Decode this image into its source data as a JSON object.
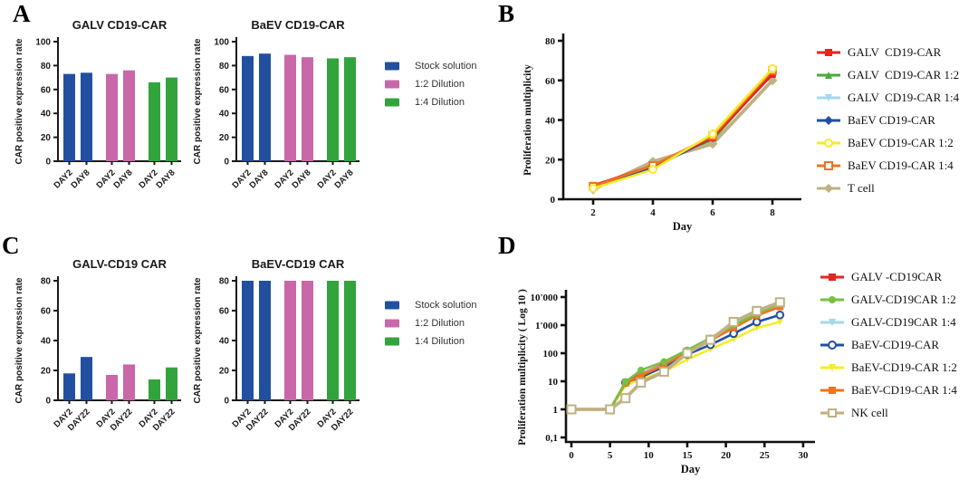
{
  "panel_letters": {
    "a": "A",
    "b": "B",
    "c": "C",
    "d": "D"
  },
  "colors": {
    "stock_blue": "#2150a0",
    "dilution_pink": "#c868a8",
    "dilution_green": "#33a33c",
    "red": "#e62420",
    "green": "#4ba93e",
    "light_green": "#76c043",
    "cyan": "#a3d9ec",
    "blue": "#2150a0",
    "yellow": "#f6eb2a",
    "orange": "#f0731d",
    "tan": "#bfb183"
  },
  "chart_data": [
    {
      "id": "a_left",
      "type": "bar",
      "title": "GALV CD19-CAR",
      "ylabel": "CAR positive expression rate",
      "ylim": [
        0,
        100
      ],
      "yticks": [
        0,
        20,
        40,
        60,
        80,
        100
      ],
      "categories": [
        "DAY2",
        "DAY8"
      ],
      "series": [
        {
          "name": "Stock solution",
          "color": "#2150a0",
          "values": [
            73,
            74
          ]
        },
        {
          "name": "1:2 Dilution",
          "color": "#c868a8",
          "values": [
            73,
            76
          ]
        },
        {
          "name": "1:4 Dilution",
          "color": "#33a33c",
          "values": [
            66,
            70
          ]
        }
      ]
    },
    {
      "id": "a_right",
      "type": "bar",
      "title": "BaEV CD19-CAR",
      "ylabel": "CAR positive expression rate",
      "ylim": [
        0,
        100
      ],
      "yticks": [
        0,
        20,
        40,
        60,
        80,
        100
      ],
      "categories": [
        "DAY2",
        "DAY8"
      ],
      "series": [
        {
          "name": "Stock solution",
          "color": "#2150a0",
          "values": [
            88,
            90
          ]
        },
        {
          "name": "1:2 Dilution",
          "color": "#c868a8",
          "values": [
            89,
            87
          ]
        },
        {
          "name": "1:4 Dilution",
          "color": "#33a33c",
          "values": [
            86,
            87
          ]
        }
      ]
    },
    {
      "id": "b",
      "type": "line",
      "xlabel": "Day",
      "ylabel": "Proliferation multiplicity",
      "ylim": [
        0,
        80
      ],
      "yticks": [
        0,
        20,
        40,
        60,
        80
      ],
      "x": [
        2,
        4,
        6,
        8
      ],
      "xticks": [
        2,
        4,
        6,
        8
      ],
      "series": [
        {
          "name": "GALV  CD19-CAR",
          "color": "#e62420",
          "marker": "square",
          "values": [
            7,
            17,
            31,
            63
          ]
        },
        {
          "name": "GALV  CD19-CAR 1:2",
          "color": "#4ba93e",
          "marker": "triangle",
          "values": [
            6,
            18,
            30,
            64
          ]
        },
        {
          "name": "GALV  CD19-CAR 1:4",
          "color": "#a3d9ec",
          "marker": "triangle-down",
          "values": [
            6,
            17,
            30.5,
            64
          ]
        },
        {
          "name": "BaEV CD19-CAR",
          "color": "#2150a0",
          "marker": "diamond",
          "values": [
            6,
            16,
            31,
            65
          ]
        },
        {
          "name": "BaEV CD19-CAR 1:2",
          "color": "#f6eb2a",
          "marker": "circle",
          "open": true,
          "values": [
            5.5,
            15,
            33,
            66
          ]
        },
        {
          "name": "BaEV CD19-CAR 1:4",
          "color": "#f0731d",
          "marker": "square",
          "open": true,
          "values": [
            6.5,
            17,
            32,
            65
          ]
        },
        {
          "name": "T cell",
          "color": "#bfb183",
          "marker": "diamond",
          "wide": true,
          "values": [
            5,
            19,
            28,
            60
          ]
        }
      ],
      "draw_order": [
        2,
        1,
        6,
        3,
        0,
        5,
        4
      ]
    },
    {
      "id": "c_left",
      "type": "bar",
      "title": "GALV-CD19 CAR",
      "ylabel": "CAR positive expression rate",
      "ylim": [
        0,
        80
      ],
      "yticks": [
        0,
        20,
        40,
        60,
        80
      ],
      "categories": [
        "DAY2",
        "DAY22"
      ],
      "series": [
        {
          "name": "Stock solution",
          "color": "#2150a0",
          "values": [
            18,
            29
          ]
        },
        {
          "name": "1:2 Dilution",
          "color": "#c868a8",
          "values": [
            17,
            24
          ]
        },
        {
          "name": "1:4 Dilution",
          "color": "#33a33c",
          "values": [
            14,
            22
          ]
        }
      ]
    },
    {
      "id": "c_right",
      "type": "bar",
      "title": "BaEV-CD19 CAR",
      "ylabel": "CAR positive expression rate",
      "ylim": [
        0,
        80
      ],
      "yticks": [
        0,
        20,
        40,
        60,
        80
      ],
      "categories": [
        "DAY2",
        "DAY22"
      ],
      "series": [
        {
          "name": "Stock solution",
          "color": "#2150a0",
          "values": [
            80,
            80
          ]
        },
        {
          "name": "1:2 Dilution",
          "color": "#c868a8",
          "values": [
            80,
            80
          ]
        },
        {
          "name": "1:4 Dilution",
          "color": "#33a33c",
          "values": [
            80,
            80
          ]
        }
      ]
    },
    {
      "id": "d",
      "type": "line",
      "xlabel": "Day",
      "ylabel": "Proliferation multiplicity  ( Log 10 )",
      "yscale": "log",
      "yticks_log": [
        {
          "label": "10'000",
          "v": 10000
        },
        {
          "label": "1'000",
          "v": 1000
        },
        {
          "label": "100",
          "v": 100
        },
        {
          "label": "10",
          "v": 10
        },
        {
          "label": "1",
          "v": 1
        },
        {
          "label": "0,1",
          "v": 0.1
        }
      ],
      "x": [
        0,
        5,
        7,
        9,
        12,
        15,
        18,
        21,
        24,
        27
      ],
      "xticks": [
        0,
        5,
        10,
        15,
        20,
        25,
        30
      ],
      "series": [
        {
          "name": "GALV -CD19CAR",
          "color": "#e62420",
          "marker": "square",
          "values": [
            1,
            1,
            9,
            18,
            42,
            120,
            300,
            900,
            2300,
            5000
          ]
        },
        {
          "name": "GALV-CD19CAR 1:2",
          "color": "#76c043",
          "marker": "circle",
          "values": [
            1,
            1,
            9.5,
            25,
            50,
            130,
            350,
            1000,
            2500,
            6000
          ]
        },
        {
          "name": "GALV-CD19CAR 1:4",
          "color": "#a3d9ec",
          "marker": "triangle-down",
          "values": [
            1,
            1,
            8,
            17,
            40,
            115,
            290,
            850,
            2250,
            4800
          ]
        },
        {
          "name": "BaEV-CD19-CAR",
          "color": "#2150a0",
          "marker": "circle",
          "open": true,
          "legend_gap": true,
          "values": [
            1,
            1,
            9,
            14,
            33,
            90,
            200,
            500,
            1300,
            2300
          ]
        },
        {
          "name": "BaEV-CD19-CAR 1:2",
          "color": "#f6eb2a",
          "marker": "triangle-down",
          "values": [
            1,
            1,
            7,
            12,
            22,
            60,
            140,
            320,
            800,
            1300
          ]
        },
        {
          "name": "BaEV-CD19-CAR 1:4",
          "color": "#f0731d",
          "marker": "square",
          "values": [
            1,
            1,
            8.5,
            16,
            38,
            110,
            280,
            800,
            2200,
            4500
          ]
        },
        {
          "name": "NK cell",
          "color": "#bfb183",
          "marker": "square",
          "wide": true,
          "open": true,
          "values": [
            1,
            1,
            2.5,
            9,
            22,
            100,
            300,
            1300,
            3200,
            6500
          ]
        }
      ],
      "draw_order": [
        0,
        2,
        4,
        3,
        5,
        1,
        6
      ]
    }
  ]
}
